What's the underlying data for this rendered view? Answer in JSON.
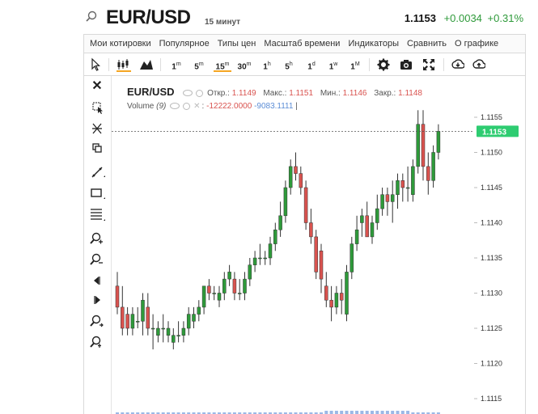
{
  "header": {
    "symbol": "EUR/USD",
    "interval": "15 минут",
    "price": "1.1153",
    "change": "+0.0034",
    "change_pct": "+0.31%"
  },
  "menu": [
    "Мои котировки",
    "Популярное",
    "Типы цен",
    "Масштаб времени",
    "Индикаторы",
    "Сравнить",
    "О графике"
  ],
  "timeframes": [
    {
      "label": "1",
      "sup": "m"
    },
    {
      "label": "5",
      "sup": "m"
    },
    {
      "label": "15",
      "sup": "m"
    },
    {
      "label": "30",
      "sup": "m"
    },
    {
      "label": "1",
      "sup": "h"
    },
    {
      "label": "5",
      "sup": "h"
    },
    {
      "label": "1",
      "sup": "d"
    },
    {
      "label": "1",
      "sup": "w"
    },
    {
      "label": "1",
      "sup": "M"
    }
  ],
  "active_timeframe": 2,
  "legend": {
    "symbol": "EUR/USD",
    "open_label": "Откр.:",
    "open": "1.1149",
    "high_label": "Макс.:",
    "high": "1.1151",
    "low_label": "Мин.:",
    "low": "1.1146",
    "close_label": "Закр.:",
    "close": "1.1148",
    "volume_label": "Volume",
    "volume_param": "(9)",
    "volume_sep": ":",
    "volume_1": "-12222.0000",
    "volume_2": "-9083.1111",
    "cursor": "|"
  },
  "colors": {
    "up": "#2e9a3a",
    "down": "#d9534f",
    "price_tag": "#2ecc71"
  },
  "chart_data": {
    "type": "candlestick",
    "y_axis_ticks": [
      "1.1155",
      "1.1150",
      "1.1145",
      "1.1140",
      "1.1135",
      "1.1130",
      "1.1125",
      "1.1120",
      "1.1115"
    ],
    "ylim": [
      1.1114,
      1.1157
    ],
    "last_price": 1.1153,
    "last_price_label": "1.1153",
    "candles": [
      [
        1.1131,
        1.1133,
        1.1127,
        1.1128
      ],
      [
        1.1128,
        1.1131,
        1.1124,
        1.1125
      ],
      [
        1.1127,
        1.1128,
        1.1124,
        1.1125
      ],
      [
        1.1125,
        1.1128,
        1.1124,
        1.1127
      ],
      [
        1.1126,
        1.1128,
        1.1125,
        1.1126
      ],
      [
        1.1126,
        1.113,
        1.1124,
        1.1129
      ],
      [
        1.1128,
        1.113,
        1.1124,
        1.1125
      ],
      [
        1.1125,
        1.1127,
        1.1122,
        1.1125
      ],
      [
        1.1124,
        1.1126,
        1.1123,
        1.1125
      ],
      [
        1.1125,
        1.1127,
        1.1123,
        1.1125
      ],
      [
        1.1124,
        1.1126,
        1.1123,
        1.1125
      ],
      [
        1.1123,
        1.1125,
        1.1122,
        1.1124
      ],
      [
        1.1124,
        1.1126,
        1.1123,
        1.1124
      ],
      [
        1.1124,
        1.1126,
        1.1123,
        1.1125
      ],
      [
        1.1125,
        1.1128,
        1.1124,
        1.1127
      ],
      [
        1.1126,
        1.1128,
        1.1125,
        1.1127
      ],
      [
        1.1127,
        1.1129,
        1.1126,
        1.1128
      ],
      [
        1.1128,
        1.1131,
        1.1127,
        1.1131
      ],
      [
        1.1131,
        1.1132,
        1.1129,
        1.113
      ],
      [
        1.113,
        1.1131,
        1.1129,
        1.113
      ],
      [
        1.1129,
        1.1131,
        1.1128,
        1.113
      ],
      [
        1.113,
        1.1133,
        1.1129,
        1.1132
      ],
      [
        1.1132,
        1.1134,
        1.1131,
        1.1133
      ],
      [
        1.1132,
        1.1133,
        1.1129,
        1.113
      ],
      [
        1.113,
        1.1132,
        1.1129,
        1.113
      ],
      [
        1.113,
        1.1133,
        1.1129,
        1.1132
      ],
      [
        1.1132,
        1.1135,
        1.1131,
        1.1134
      ],
      [
        1.1134,
        1.1136,
        1.1133,
        1.1135
      ],
      [
        1.1135,
        1.1137,
        1.1134,
        1.1135
      ],
      [
        1.1135,
        1.1136,
        1.1134,
        1.1135
      ],
      [
        1.1135,
        1.1138,
        1.1134,
        1.1137
      ],
      [
        1.1137,
        1.114,
        1.1136,
        1.1139
      ],
      [
        1.1139,
        1.1143,
        1.1138,
        1.1141
      ],
      [
        1.1141,
        1.1146,
        1.114,
        1.1145
      ],
      [
        1.1145,
        1.1149,
        1.1144,
        1.1148
      ],
      [
        1.1148,
        1.115,
        1.1146,
        1.1147
      ],
      [
        1.1147,
        1.1148,
        1.1144,
        1.1145
      ],
      [
        1.1145,
        1.1146,
        1.1139,
        1.114
      ],
      [
        1.114,
        1.1142,
        1.1137,
        1.1138
      ],
      [
        1.1138,
        1.1139,
        1.1132,
        1.1133
      ],
      [
        1.1136,
        1.1137,
        1.113,
        1.1132
      ],
      [
        1.1131,
        1.1133,
        1.1128,
        1.1129
      ],
      [
        1.1129,
        1.1131,
        1.1126,
        1.1128
      ],
      [
        1.1128,
        1.1131,
        1.1127,
        1.113
      ],
      [
        1.113,
        1.1132,
        1.1127,
        1.1129
      ],
      [
        1.1127,
        1.1134,
        1.1126,
        1.1133
      ],
      [
        1.1133,
        1.1138,
        1.1132,
        1.1137
      ],
      [
        1.1137,
        1.1141,
        1.1136,
        1.1139
      ],
      [
        1.114,
        1.1142,
        1.1138,
        1.1141
      ],
      [
        1.1141,
        1.1143,
        1.1138,
        1.1138
      ],
      [
        1.1138,
        1.1141,
        1.1137,
        1.114
      ],
      [
        1.114,
        1.1144,
        1.1139,
        1.1142
      ],
      [
        1.1142,
        1.1145,
        1.1141,
        1.1144
      ],
      [
        1.1144,
        1.1145,
        1.1141,
        1.1143
      ],
      [
        1.1143,
        1.1146,
        1.114,
        1.1144
      ],
      [
        1.1144,
        1.1147,
        1.1142,
        1.1146
      ],
      [
        1.1146,
        1.1147,
        1.1143,
        1.1145
      ],
      [
        1.1145,
        1.1148,
        1.1143,
        1.1145
      ],
      [
        1.1144,
        1.1149,
        1.1143,
        1.1148
      ],
      [
        1.1148,
        1.1156,
        1.1147,
        1.1154
      ],
      [
        1.1154,
        1.1156,
        1.1146,
        1.1148
      ],
      [
        1.1148,
        1.115,
        1.1144,
        1.1146
      ],
      [
        1.1146,
        1.1151,
        1.1145,
        1.115
      ],
      [
        1.115,
        1.1154,
        1.1149,
        1.1153
      ]
    ]
  }
}
